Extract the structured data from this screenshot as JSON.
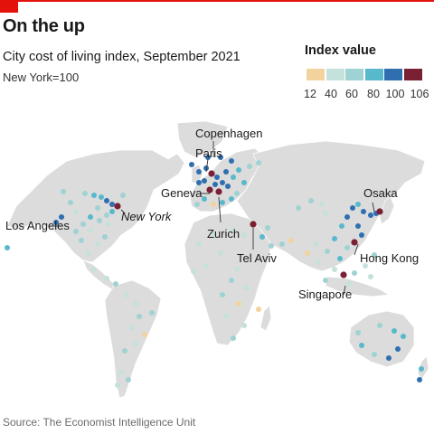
{
  "header": {
    "title": "On the up",
    "subtitle": "City cost of living index, September 2021",
    "note": "New York=100"
  },
  "legend": {
    "title": "Index value",
    "ticks": [
      "12",
      "40",
      "60",
      "80",
      "100",
      "106"
    ],
    "colors": [
      "#f2d39e",
      "#c4e1db",
      "#9fd2d3",
      "#58b9cc",
      "#2f6fb0",
      "#7a2035"
    ]
  },
  "source": "Source: The Economist Intelligence Unit",
  "map": {
    "labels": {
      "copenhagen": "Copenhagen",
      "paris": "Paris",
      "geneva": "Geneva",
      "zurich": "Zurich",
      "new_york": "New York",
      "los_angeles": "Los Angeles",
      "tel_aviv": "Tel Aviv",
      "osaka": "Osaka",
      "hong_kong": "Hong Kong",
      "singapore": "Singapore"
    },
    "city_colors": {
      "pale": "#f2d39e",
      "light": "#c4e1db",
      "mid": "#9fd2d3",
      "teal": "#58b9cc",
      "blue": "#2f6fb0",
      "top": "#7a2035"
    },
    "projection_note_visible": false
  }
}
